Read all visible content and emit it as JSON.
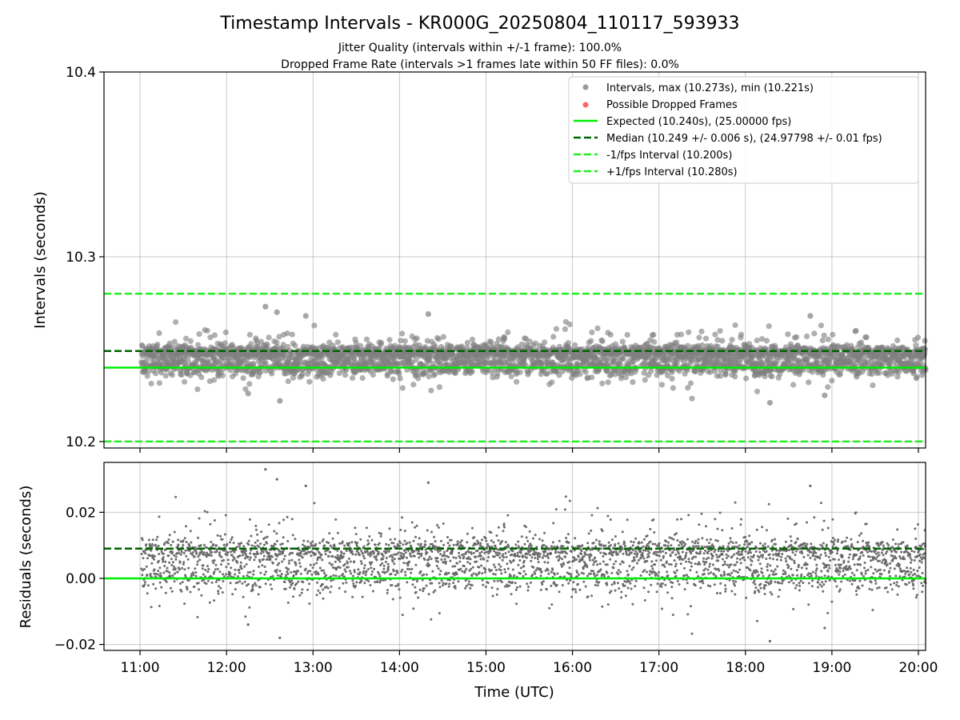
{
  "figure": {
    "title": "Timestamp Intervals - KR000G_20250804_110117_593933",
    "subtitle_1": "Jitter Quality (intervals within +/-1 frame): 100.0%",
    "subtitle_2": "Dropped Frame Rate (intervals >1 frames late within 50 FF files): 0.0%"
  },
  "colors": {
    "intervals": "#808080",
    "dropped": "#ff6666",
    "expected": "#00ee00",
    "median": "#006400",
    "fps_bounds": "#22ee22",
    "residual_points": "#666666",
    "grid": "#b0b0b0",
    "axes": "#000000"
  },
  "chart_data": [
    {
      "name": "intervals",
      "type": "scatter",
      "xlabel": "",
      "ylabel": "Intervals (seconds)",
      "xlim": [
        "10:35",
        "20:05"
      ],
      "ylim": [
        10.1965,
        10.4
      ],
      "yticks": [
        10.2,
        10.3,
        10.4
      ],
      "ytick_labels": [
        "10.2",
        "10.3",
        "10.4"
      ],
      "xticks": [
        "11:00",
        "12:00",
        "13:00",
        "14:00",
        "15:00",
        "16:00",
        "17:00",
        "18:00",
        "19:00",
        "20:00"
      ],
      "grid": true,
      "legend_position": "top-right",
      "legend": [
        {
          "label": "Intervals, max (10.273s), min (10.221s)",
          "kind": "marker",
          "color": "#9a9a9a"
        },
        {
          "label": "Possible Dropped Frames",
          "kind": "marker",
          "color": "#ff6666"
        },
        {
          "label": "Expected (10.240s), (25.00000 fps)",
          "kind": "line",
          "color": "#00ee00"
        },
        {
          "label": "Median (10.249 +/- 0.006 s), (24.97798 +/- 0.01 fps)",
          "kind": "dash",
          "color": "#006400"
        },
        {
          "label": "-1/fps Interval (10.200s)",
          "kind": "dash",
          "color": "#22ee22"
        },
        {
          "label": "+1/fps Interval (10.280s)",
          "kind": "dash",
          "color": "#22ee22"
        }
      ],
      "reference_lines": [
        {
          "name": "Expected",
          "y": 10.24,
          "style": "solid",
          "color": "#00ee00"
        },
        {
          "name": "Median",
          "y": 10.249,
          "style": "dashed",
          "color": "#006400"
        },
        {
          "name": "-1/fps Interval",
          "y": 10.2,
          "style": "dashed",
          "color": "#22ee22"
        },
        {
          "name": "+1/fps Interval",
          "y": 10.28,
          "style": "dashed",
          "color": "#22ee22"
        }
      ],
      "series": [
        {
          "name": "Intervals",
          "x_start": "11:01",
          "x_end": "20:05",
          "n_points": 3190,
          "typical_center": 10.2465,
          "typical_spread": 0.006,
          "max": 10.273,
          "min": 10.221,
          "extremes": [
            {
              "x": "12:27",
              "y": 10.273
            },
            {
              "x": "12:35",
              "y": 10.27
            },
            {
              "x": "14:20",
              "y": 10.269
            },
            {
              "x": "18:45",
              "y": 10.268
            },
            {
              "x": "12:55",
              "y": 10.268
            },
            {
              "x": "18:17",
              "y": 10.221
            },
            {
              "x": "12:37",
              "y": 10.222
            },
            {
              "x": "18:55",
              "y": 10.225
            },
            {
              "x": "12:15",
              "y": 10.226
            }
          ]
        },
        {
          "name": "Possible Dropped Frames",
          "points": []
        }
      ]
    },
    {
      "name": "residuals",
      "type": "scatter",
      "xlabel": "Time (UTC)",
      "ylabel": "Residuals (seconds)",
      "xlim": [
        "10:35",
        "20:05"
      ],
      "ylim": [
        -0.0218,
        0.0351
      ],
      "yticks": [
        -0.02,
        0.0,
        0.02
      ],
      "ytick_labels": [
        "−0.02",
        "0.00",
        "0.02"
      ],
      "xticks": [
        "11:00",
        "12:00",
        "13:00",
        "14:00",
        "15:00",
        "16:00",
        "17:00",
        "18:00",
        "19:00",
        "20:00"
      ],
      "grid": true,
      "reference_lines": [
        {
          "name": "Zero",
          "y": 0.0,
          "style": "solid",
          "color": "#00ee00"
        },
        {
          "name": "Median",
          "y": 0.009,
          "style": "dashed",
          "color": "#006400"
        }
      ],
      "series": [
        {
          "name": "Residuals",
          "x_start": "11:01",
          "x_end": "20:05",
          "n_points": 3190,
          "typical_center": 0.0065,
          "typical_spread": 0.006,
          "max": 0.033,
          "min": -0.019
        }
      ]
    }
  ]
}
